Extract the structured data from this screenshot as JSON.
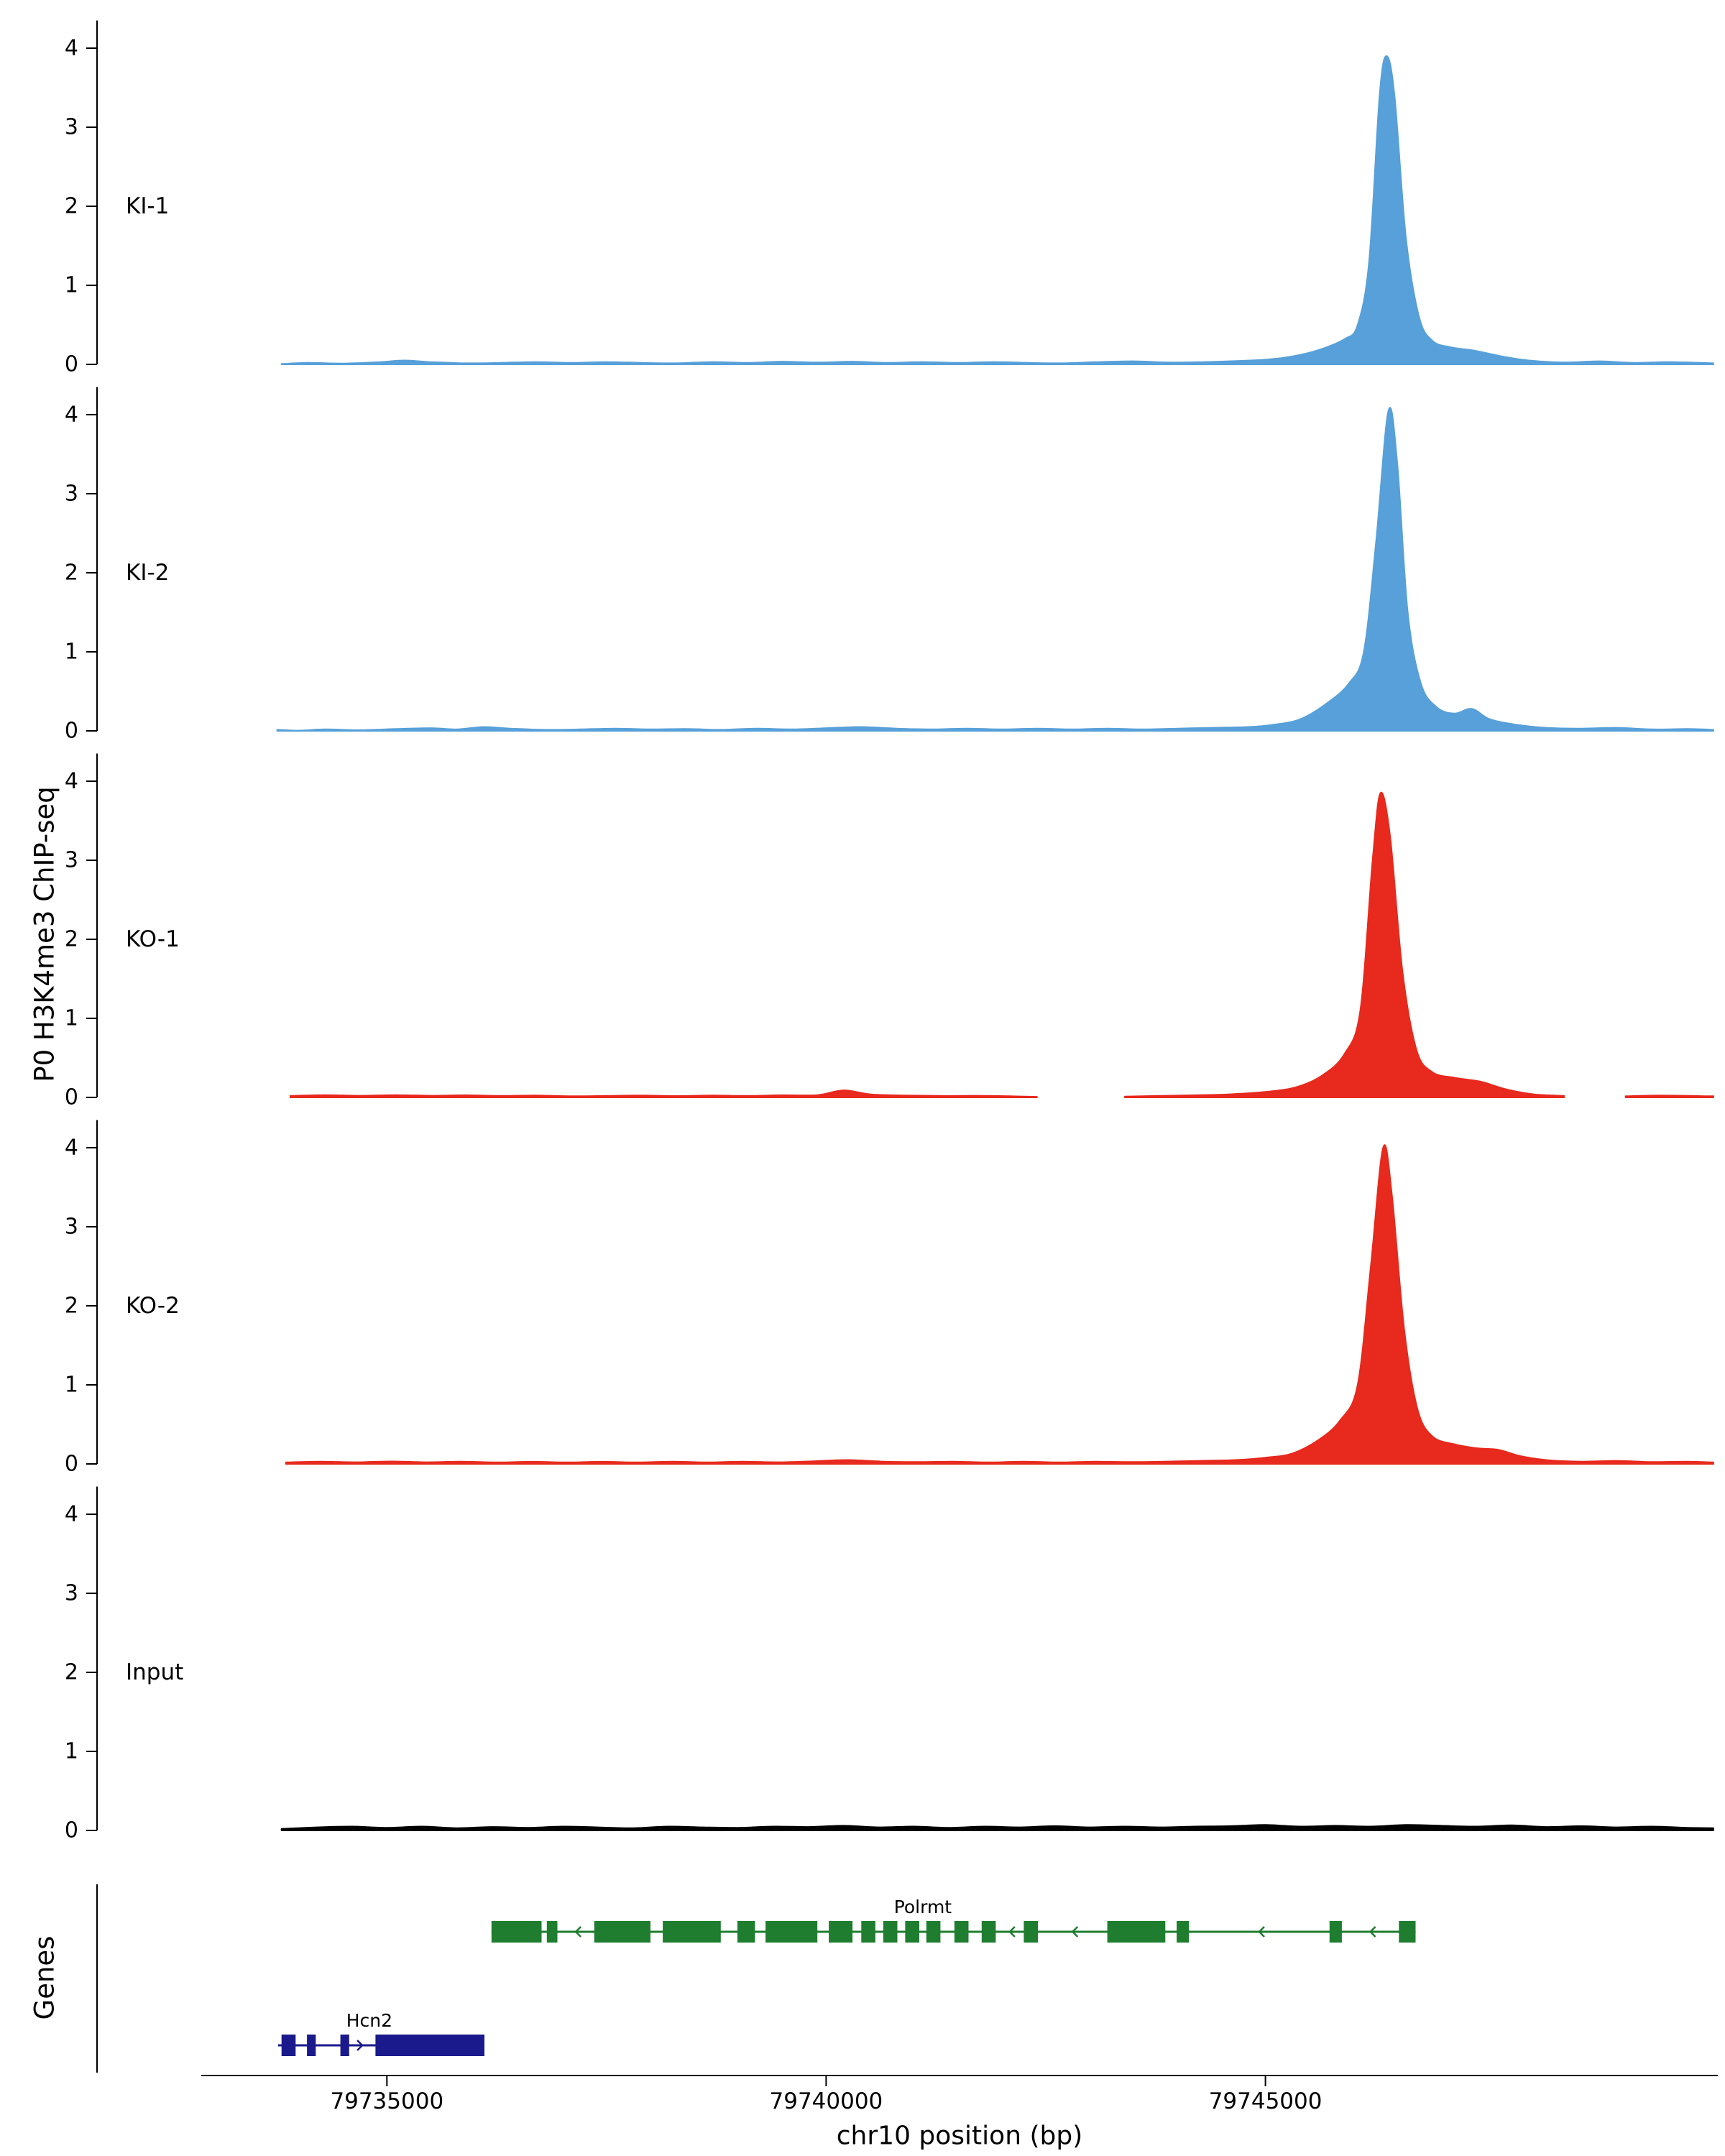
{
  "figure": {
    "y_axis_title": "P0 H3K4me3 ChIP-seq",
    "genes_axis_title": "Genes",
    "x_axis_title": "chr10 position (bp)",
    "y_ticks": [
      "0",
      "1",
      "2",
      "3",
      "4"
    ],
    "x_ticks": [
      {
        "bp": 79735000,
        "label": "79735000"
      },
      {
        "bp": 79740000,
        "label": "79740000"
      },
      {
        "bp": 79745000,
        "label": "79745000"
      }
    ]
  },
  "chart_data": {
    "type": "area",
    "title": "",
    "xlabel": "chr10 position (bp)",
    "ylabel": "P0 H3K4me3 ChIP-seq",
    "xlim": [
      79731700,
      79750150
    ],
    "ylim": [
      0,
      4.3
    ],
    "x_tick_values": [
      79735000,
      79740000,
      79745000
    ],
    "y_tick_values": [
      0,
      1,
      2,
      3,
      4
    ],
    "grid": false,
    "legend": "none",
    "tracks": [
      {
        "name": "KI-1",
        "color": "#57A0D9",
        "peak_summit_bp": 79746380,
        "peak_height": 3.9,
        "profile": [
          [
            79733800,
            0.005
          ],
          [
            79734100,
            0.02
          ],
          [
            79734500,
            0.012
          ],
          [
            79734900,
            0.028
          ],
          [
            79735200,
            0.05
          ],
          [
            79735500,
            0.03
          ],
          [
            79735900,
            0.015
          ],
          [
            79736300,
            0.02
          ],
          [
            79736700,
            0.03
          ],
          [
            79737100,
            0.02
          ],
          [
            79737500,
            0.03
          ],
          [
            79737900,
            0.02
          ],
          [
            79738300,
            0.015
          ],
          [
            79738700,
            0.03
          ],
          [
            79739100,
            0.02
          ],
          [
            79739500,
            0.035
          ],
          [
            79739900,
            0.025
          ],
          [
            79740300,
            0.035
          ],
          [
            79740700,
            0.02
          ],
          [
            79741100,
            0.03
          ],
          [
            79741500,
            0.02
          ],
          [
            79741900,
            0.03
          ],
          [
            79742300,
            0.02
          ],
          [
            79742700,
            0.015
          ],
          [
            79743100,
            0.03
          ],
          [
            79743500,
            0.04
          ],
          [
            79743900,
            0.025
          ],
          [
            79744300,
            0.03
          ],
          [
            79744700,
            0.045
          ],
          [
            79745000,
            0.06
          ],
          [
            79745300,
            0.1
          ],
          [
            79745600,
            0.18
          ],
          [
            79745900,
            0.32
          ],
          [
            79746050,
            0.5
          ],
          [
            79746180,
            1.3
          ],
          [
            79746300,
            3.4
          ],
          [
            79746380,
            3.9
          ],
          [
            79746470,
            3.4
          ],
          [
            79746600,
            1.6
          ],
          [
            79746750,
            0.6
          ],
          [
            79746900,
            0.3
          ],
          [
            79747100,
            0.22
          ],
          [
            79747400,
            0.17
          ],
          [
            79747700,
            0.1
          ],
          [
            79748000,
            0.05
          ],
          [
            79748400,
            0.025
          ],
          [
            79748800,
            0.04
          ],
          [
            79749200,
            0.02
          ],
          [
            79749600,
            0.03
          ],
          [
            79750100,
            0.015
          ]
        ]
      },
      {
        "name": "KI-2",
        "color": "#57A0D9",
        "peak_summit_bp": 79746400,
        "peak_height": 4.05,
        "profile": [
          [
            79733750,
            0.015
          ],
          [
            79734000,
            0.005
          ],
          [
            79734300,
            0.02
          ],
          [
            79734700,
            0.01
          ],
          [
            79735100,
            0.025
          ],
          [
            79735500,
            0.035
          ],
          [
            79735800,
            0.02
          ],
          [
            79736100,
            0.05
          ],
          [
            79736400,
            0.03
          ],
          [
            79736800,
            0.015
          ],
          [
            79737200,
            0.02
          ],
          [
            79737600,
            0.03
          ],
          [
            79738000,
            0.02
          ],
          [
            79738400,
            0.025
          ],
          [
            79738800,
            0.015
          ],
          [
            79739200,
            0.03
          ],
          [
            79739600,
            0.02
          ],
          [
            79740000,
            0.035
          ],
          [
            79740400,
            0.05
          ],
          [
            79740800,
            0.03
          ],
          [
            79741200,
            0.02
          ],
          [
            79741600,
            0.03
          ],
          [
            79742000,
            0.02
          ],
          [
            79742400,
            0.03
          ],
          [
            79742800,
            0.02
          ],
          [
            79743200,
            0.03
          ],
          [
            79743600,
            0.02
          ],
          [
            79744000,
            0.03
          ],
          [
            79744400,
            0.04
          ],
          [
            79744800,
            0.05
          ],
          [
            79745100,
            0.08
          ],
          [
            79745400,
            0.15
          ],
          [
            79745700,
            0.35
          ],
          [
            79745950,
            0.6
          ],
          [
            79746120,
            1.0
          ],
          [
            79746260,
            2.4
          ],
          [
            79746400,
            4.05
          ],
          [
            79746500,
            3.4
          ],
          [
            79746620,
            1.5
          ],
          [
            79746770,
            0.6
          ],
          [
            79746950,
            0.3
          ],
          [
            79747150,
            0.22
          ],
          [
            79747350,
            0.28
          ],
          [
            79747550,
            0.15
          ],
          [
            79747850,
            0.08
          ],
          [
            79748200,
            0.04
          ],
          [
            79748600,
            0.03
          ],
          [
            79749000,
            0.04
          ],
          [
            79749400,
            0.02
          ],
          [
            79749800,
            0.025
          ],
          [
            79750100,
            0.015
          ]
        ]
      },
      {
        "name": "KO-1",
        "color": "#E8291D",
        "peak_summit_bp": 79746310,
        "peak_height": 3.85,
        "profile": [
          [
            79733900,
            0.02
          ],
          [
            79734300,
            0.03
          ],
          [
            79734700,
            0.022
          ],
          [
            79735100,
            0.03
          ],
          [
            79735500,
            0.022
          ],
          [
            79735900,
            0.028
          ],
          [
            79736300,
            0.02
          ],
          [
            79736700,
            0.025
          ],
          [
            79737100,
            0.015
          ],
          [
            79737500,
            0.02
          ],
          [
            79737900,
            0.025
          ],
          [
            79738300,
            0.018
          ],
          [
            79738700,
            0.025
          ],
          [
            79739100,
            0.02
          ],
          [
            79739500,
            0.028
          ],
          [
            79739900,
            0.03
          ],
          [
            79740200,
            0.09
          ],
          [
            79740500,
            0.04
          ],
          [
            79740900,
            0.025
          ],
          [
            79741300,
            0.02
          ],
          [
            79741700,
            0.022
          ],
          [
            79742100,
            0.015
          ],
          [
            79742400,
            0.008
          ],
          [
            79742700,
            null
          ],
          [
            79743400,
            0.012
          ],
          [
            79743800,
            0.02
          ],
          [
            79744200,
            0.028
          ],
          [
            79744600,
            0.04
          ],
          [
            79745000,
            0.07
          ],
          [
            79745350,
            0.13
          ],
          [
            79745650,
            0.28
          ],
          [
            79745900,
            0.55
          ],
          [
            79746080,
            1.1
          ],
          [
            79746220,
            3.0
          ],
          [
            79746310,
            3.85
          ],
          [
            79746420,
            3.3
          ],
          [
            79746560,
            1.6
          ],
          [
            79746720,
            0.6
          ],
          [
            79746900,
            0.32
          ],
          [
            79747150,
            0.25
          ],
          [
            79747450,
            0.2
          ],
          [
            79747750,
            0.1
          ],
          [
            79748050,
            0.04
          ],
          [
            79748400,
            0.02
          ],
          [
            79748700,
            null
          ],
          [
            79749100,
            0.015
          ],
          [
            79749500,
            0.025
          ],
          [
            79750100,
            0.015
          ]
        ]
      },
      {
        "name": "KO-2",
        "color": "#E8291D",
        "peak_summit_bp": 79746340,
        "peak_height": 4.0,
        "profile": [
          [
            79733850,
            0.02
          ],
          [
            79734250,
            0.03
          ],
          [
            79734650,
            0.022
          ],
          [
            79735050,
            0.032
          ],
          [
            79735450,
            0.022
          ],
          [
            79735850,
            0.03
          ],
          [
            79736250,
            0.02
          ],
          [
            79736650,
            0.028
          ],
          [
            79737050,
            0.02
          ],
          [
            79737450,
            0.028
          ],
          [
            79737850,
            0.02
          ],
          [
            79738250,
            0.03
          ],
          [
            79738650,
            0.02
          ],
          [
            79739050,
            0.03
          ],
          [
            79739450,
            0.022
          ],
          [
            79739850,
            0.035
          ],
          [
            79740250,
            0.05
          ],
          [
            79740650,
            0.03
          ],
          [
            79741050,
            0.025
          ],
          [
            79741450,
            0.03
          ],
          [
            79741850,
            0.02
          ],
          [
            79742250,
            0.03
          ],
          [
            79742650,
            0.02
          ],
          [
            79743050,
            0.03
          ],
          [
            79743450,
            0.025
          ],
          [
            79743850,
            0.03
          ],
          [
            79744250,
            0.04
          ],
          [
            79744650,
            0.05
          ],
          [
            79745000,
            0.08
          ],
          [
            79745300,
            0.13
          ],
          [
            79745600,
            0.3
          ],
          [
            79745850,
            0.55
          ],
          [
            79746050,
            1.0
          ],
          [
            79746200,
            2.5
          ],
          [
            79746340,
            4.0
          ],
          [
            79746440,
            3.4
          ],
          [
            79746580,
            1.7
          ],
          [
            79746730,
            0.7
          ],
          [
            79746900,
            0.35
          ],
          [
            79747150,
            0.25
          ],
          [
            79747400,
            0.2
          ],
          [
            79747650,
            0.18
          ],
          [
            79747900,
            0.1
          ],
          [
            79748200,
            0.05
          ],
          [
            79748600,
            0.03
          ],
          [
            79749000,
            0.04
          ],
          [
            79749400,
            0.025
          ],
          [
            79749800,
            0.03
          ],
          [
            79750100,
            0.02
          ]
        ]
      },
      {
        "name": "Input",
        "color": "#000000",
        "peak_summit_bp": null,
        "peak_height": null,
        "profile": [
          [
            79733800,
            0.02
          ],
          [
            79734200,
            0.04
          ],
          [
            79734600,
            0.05
          ],
          [
            79735000,
            0.035
          ],
          [
            79735400,
            0.05
          ],
          [
            79735800,
            0.03
          ],
          [
            79736200,
            0.045
          ],
          [
            79736600,
            0.035
          ],
          [
            79737000,
            0.05
          ],
          [
            79737400,
            0.04
          ],
          [
            79737800,
            0.03
          ],
          [
            79738200,
            0.05
          ],
          [
            79738600,
            0.04
          ],
          [
            79739000,
            0.035
          ],
          [
            79739400,
            0.05
          ],
          [
            79739800,
            0.045
          ],
          [
            79740200,
            0.06
          ],
          [
            79740600,
            0.04
          ],
          [
            79741000,
            0.05
          ],
          [
            79741400,
            0.035
          ],
          [
            79741800,
            0.05
          ],
          [
            79742200,
            0.04
          ],
          [
            79742600,
            0.055
          ],
          [
            79743000,
            0.04
          ],
          [
            79743400,
            0.05
          ],
          [
            79743800,
            0.04
          ],
          [
            79744200,
            0.05
          ],
          [
            79744600,
            0.055
          ],
          [
            79745000,
            0.07
          ],
          [
            79745400,
            0.05
          ],
          [
            79745800,
            0.06
          ],
          [
            79746200,
            0.05
          ],
          [
            79746600,
            0.07
          ],
          [
            79747000,
            0.06
          ],
          [
            79747400,
            0.05
          ],
          [
            79747800,
            0.065
          ],
          [
            79748200,
            0.045
          ],
          [
            79748600,
            0.055
          ],
          [
            79749000,
            0.04
          ],
          [
            79749400,
            0.05
          ],
          [
            79749800,
            0.035
          ],
          [
            79750100,
            0.03
          ]
        ]
      }
    ],
    "genes": [
      {
        "name": "Polrmt",
        "color": "#1E7D2E",
        "strand": "-",
        "start": 79736190,
        "end": 79746710,
        "row": 0,
        "label_bp": 79741100,
        "exons": [
          [
            79736190,
            79736760
          ],
          [
            79736820,
            79736940
          ],
          [
            79737360,
            79738000
          ],
          [
            79738140,
            79738800
          ],
          [
            79738990,
            79739190
          ],
          [
            79739310,
            79739900
          ],
          [
            79740030,
            79740300
          ],
          [
            79740400,
            79740560
          ],
          [
            79740650,
            79740810
          ],
          [
            79740900,
            79741060
          ],
          [
            79741140,
            79741300
          ],
          [
            79741460,
            79741620
          ],
          [
            79741770,
            79741930
          ],
          [
            79742250,
            79742410
          ],
          [
            79743200,
            79743860
          ],
          [
            79743990,
            79744130
          ],
          [
            79745730,
            79745870
          ],
          [
            79746520,
            79746710
          ]
        ]
      },
      {
        "name": "Hcn2",
        "color": "#1A1A8C",
        "strand": "+",
        "start": 79733760,
        "end": 79736110,
        "row": 1,
        "label_bp": 79734800,
        "exons": [
          [
            79733800,
            79733960
          ],
          [
            79734090,
            79734190
          ],
          [
            79734470,
            79734570
          ],
          [
            79734870,
            79736110
          ]
        ]
      }
    ]
  }
}
